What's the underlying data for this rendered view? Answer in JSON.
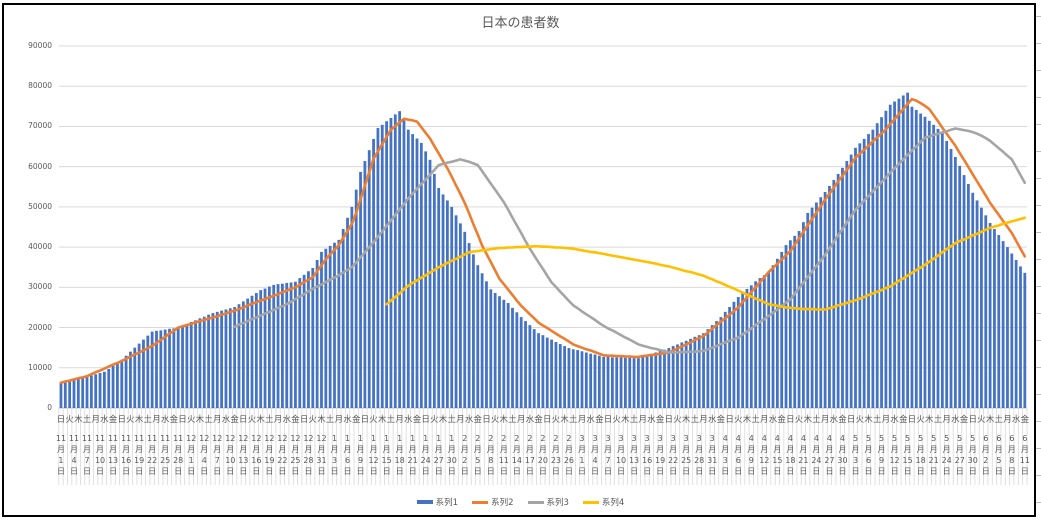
{
  "chart_data": {
    "type": "bar+line",
    "title": "日本の患者数",
    "ylim": [
      0,
      90000
    ],
    "yticks": [
      "0",
      "10000",
      "20000",
      "30000",
      "40000",
      "50000",
      "60000",
      "70000",
      "80000",
      "90000"
    ],
    "grid": true,
    "legend_position": "bottom",
    "weekday_labels": [
      "日",
      "火",
      "木",
      "土",
      "月",
      "水",
      "金",
      "日",
      "火",
      "木",
      "土",
      "月",
      "水",
      "金",
      "日",
      "火",
      "木",
      "土",
      "月",
      "水",
      "金",
      "日",
      "火",
      "木",
      "土",
      "月",
      "水",
      "金",
      "日",
      "火",
      "木",
      "土",
      "月",
      "水",
      "金",
      "日",
      "火",
      "木",
      "土",
      "月",
      "水",
      "金",
      "日",
      "火",
      "木",
      "土",
      "月",
      "水",
      "金",
      "日",
      "火",
      "木",
      "土",
      "月",
      "水",
      "金",
      "日",
      "火",
      "木",
      "土",
      "月",
      "水",
      "金",
      "日",
      "火",
      "木",
      "土",
      "月",
      "水",
      "金",
      "日",
      "火",
      "木",
      "土",
      "月",
      "水",
      "金",
      "日",
      "火",
      "木",
      "土",
      "月",
      "水",
      "金",
      "日",
      "火",
      "木",
      "土",
      "月",
      "水",
      "金",
      "日",
      "火",
      "木",
      "土",
      "月",
      "水",
      "金",
      "日",
      "火",
      "木",
      "土",
      "月",
      "水",
      "金",
      "日",
      "火",
      "木",
      "土",
      "月",
      "水",
      "金"
    ],
    "date_labels": [
      "11月1日",
      "11月4日",
      "11月7日",
      "11月10日",
      "11月13日",
      "11月16日",
      "11月19日",
      "11月22日",
      "11月25日",
      "11月28日",
      "12月1日",
      "12月4日",
      "12月7日",
      "12月10日",
      "12月13日",
      "12月16日",
      "12月19日",
      "12月22日",
      "12月25日",
      "12月28日",
      "12月31日",
      "1月3日",
      "1月6日",
      "1月9日",
      "1月12日",
      "1月15日",
      "1月18日",
      "1月21日",
      "1月24日",
      "1月27日",
      "1月30日",
      "2月2日",
      "2月5日",
      "2月8日",
      "2月11日",
      "2月14日",
      "2月17日",
      "2月20日",
      "2月23日",
      "2月26日",
      "3月1日",
      "3月4日",
      "3月7日",
      "3月10日",
      "3月13日",
      "3月16日",
      "3月19日",
      "3月22日",
      "3月25日",
      "3月28日",
      "3月31日",
      "4月3日",
      "4月6日",
      "4月9日",
      "4月12日",
      "4月15日",
      "4月18日",
      "4月21日",
      "4月24日",
      "4月27日",
      "4月30日",
      "5月3日",
      "5月6日",
      "5月9日",
      "5月12日",
      "5月15日",
      "5月18日",
      "5月21日",
      "5月24日",
      "5月27日",
      "5月30日",
      "6月2日",
      "6月5日",
      "6月8日",
      "6月11日"
    ],
    "series": [
      {
        "name": "系列1",
        "type": "bar",
        "color": "#4472C4",
        "values": [
          6500,
          6700,
          6900,
          7100,
          7300,
          7500,
          7800,
          8100,
          8400,
          8700,
          9000,
          9700,
          10500,
          11200,
          12000,
          13000,
          14000,
          15000,
          16000,
          17000,
          18000,
          19000,
          19200,
          19300,
          19500,
          19700,
          19800,
          20000,
          20500,
          20900,
          21400,
          21800,
          22300,
          22700,
          23200,
          23600,
          23900,
          24200,
          24500,
          24800,
          25100,
          25800,
          26500,
          27200,
          27900,
          28600,
          29300,
          29700,
          30200,
          30600,
          30800,
          30900,
          31100,
          31200,
          31400,
          32300,
          33100,
          34000,
          34800,
          36800,
          38800,
          39600,
          40300,
          41100,
          41800,
          44500,
          47300,
          50000,
          54300,
          58700,
          61400,
          64100,
          66900,
          69600,
          70400,
          71300,
          72100,
          73000,
          73800,
          71500,
          69200,
          68100,
          67000,
          65900,
          63800,
          61700,
          58200,
          54700,
          53100,
          51600,
          50000,
          47900,
          45900,
          43800,
          41000,
          38200,
          35500,
          33500,
          31500,
          29500,
          28600,
          27800,
          26900,
          26100,
          24900,
          23800,
          22600,
          21600,
          20600,
          19600,
          18600,
          18100,
          17500,
          17000,
          16400,
          15900,
          15400,
          14900,
          14600,
          14400,
          14100,
          13800,
          13500,
          13300,
          13000,
          12700,
          12700,
          12600,
          12600,
          12600,
          12500,
          12500,
          12400,
          12400,
          12800,
          13100,
          13500,
          13800,
          14200,
          14500,
          14900,
          15400,
          15800,
          16300,
          16700,
          17200,
          17700,
          18100,
          18600,
          19600,
          20600,
          21600,
          22600,
          23900,
          25100,
          26400,
          27600,
          28600,
          29600,
          30500,
          31500,
          32300,
          33000,
          33800,
          35500,
          37100,
          38800,
          40500,
          41700,
          42800,
          44000,
          46200,
          48500,
          49800,
          51100,
          52400,
          53700,
          55200,
          56700,
          58200,
          59700,
          61400,
          63000,
          64700,
          65800,
          66900,
          68100,
          69200,
          70800,
          72300,
          73900,
          75400,
          76200,
          76900,
          77700,
          78400,
          74900,
          74100,
          73200,
          72400,
          71400,
          70400,
          69400,
          68400,
          66400,
          64400,
          62400,
          60200,
          57900,
          55700,
          53500,
          51600,
          49800,
          47900,
          46000,
          44500,
          43000,
          41500,
          40000,
          38400,
          36800,
          35200,
          33600
        ]
      },
      {
        "name": "系列2",
        "type": "line",
        "color": "#ED7D31",
        "values": [
          6300,
          6600,
          6800,
          7100,
          7400,
          7600,
          7900,
          8400,
          8900,
          9300,
          9800,
          10300,
          10800,
          11200,
          11700,
          12200,
          12800,
          13300,
          13800,
          14300,
          14900,
          15400,
          16200,
          16900,
          17700,
          18500,
          19200,
          20000,
          20300,
          20600,
          20900,
          21300,
          21600,
          21900,
          22200,
          22500,
          22800,
          23200,
          23500,
          23900,
          24200,
          24600,
          25000,
          25500,
          25900,
          26300,
          26700,
          27100,
          27500,
          27900,
          28300,
          28800,
          29200,
          29600,
          30000,
          30600,
          31300,
          31900,
          32500,
          34000,
          35500,
          37000,
          38200,
          39300,
          40500,
          42300,
          44000,
          45800,
          48500,
          51900,
          55300,
          58600,
          62000,
          63800,
          65600,
          67400,
          69200,
          70100,
          71000,
          71900,
          71700,
          71500,
          71200,
          69800,
          68400,
          67000,
          65100,
          63300,
          61400,
          59600,
          57500,
          55300,
          53200,
          51000,
          48400,
          45700,
          43100,
          40400,
          38300,
          36300,
          34200,
          32100,
          30800,
          29400,
          28100,
          26700,
          25400,
          24400,
          23300,
          22300,
          21200,
          20500,
          19900,
          19200,
          18500,
          17800,
          17200,
          16500,
          15800,
          15400,
          15000,
          14600,
          14300,
          13900,
          13500,
          13100,
          13000,
          13000,
          12900,
          12900,
          12800,
          12800,
          12700,
          12700,
          12900,
          13000,
          13200,
          13300,
          13500,
          13600,
          13800,
          14300,
          14800,
          15300,
          15800,
          16300,
          16900,
          17400,
          17900,
          18800,
          19700,
          20600,
          21500,
          22300,
          23200,
          24100,
          25000,
          26300,
          27500,
          28800,
          30000,
          31300,
          32500,
          33800,
          34800,
          35900,
          36900,
          38000,
          39000,
          40600,
          42200,
          43800,
          45400,
          47000,
          48600,
          50200,
          51800,
          53300,
          54800,
          56300,
          57700,
          59200,
          60700,
          62200,
          63200,
          64200,
          65200,
          66300,
          67300,
          68300,
          69300,
          70600,
          71800,
          73100,
          74300,
          75600,
          76800,
          76400,
          75800,
          75100,
          74300,
          72800,
          71300,
          69700,
          68200,
          66700,
          65200,
          63400,
          61700,
          59900,
          58100,
          56300,
          54600,
          52800,
          51000,
          49500,
          48000,
          46500,
          45000,
          43500,
          41600,
          39600,
          37700
        ]
      },
      {
        "name": "系列3",
        "type": "line",
        "color": "#A5A5A5",
        "values": [
          null,
          null,
          null,
          null,
          null,
          null,
          null,
          null,
          null,
          null,
          null,
          null,
          null,
          null,
          null,
          null,
          null,
          null,
          null,
          null,
          null,
          null,
          null,
          null,
          null,
          null,
          null,
          null,
          null,
          null,
          null,
          null,
          null,
          null,
          null,
          null,
          null,
          null,
          null,
          null,
          20200,
          20700,
          21100,
          21600,
          22100,
          22500,
          23000,
          23500,
          23900,
          24400,
          24900,
          25300,
          25800,
          26400,
          27100,
          27700,
          28300,
          29000,
          29600,
          30200,
          30700,
          31300,
          31900,
          32400,
          33000,
          33700,
          34300,
          35000,
          36200,
          37500,
          38700,
          40000,
          41200,
          42600,
          43900,
          45300,
          46600,
          48000,
          49400,
          50700,
          52100,
          53300,
          54500,
          55700,
          56800,
          58000,
          59200,
          60400,
          60700,
          61000,
          61200,
          61500,
          61800,
          61500,
          61200,
          60800,
          60400,
          58900,
          57300,
          55800,
          54300,
          52700,
          51200,
          49300,
          47300,
          45400,
          43500,
          41500,
          39600,
          37900,
          36200,
          34600,
          32900,
          31200,
          30100,
          28900,
          27800,
          26600,
          25500,
          24800,
          24000,
          23300,
          22600,
          21900,
          21100,
          20400,
          19800,
          19300,
          18700,
          18100,
          17500,
          17000,
          16400,
          15800,
          15500,
          15200,
          14900,
          14700,
          14400,
          14100,
          13800,
          13800,
          13800,
          13900,
          13900,
          14000,
          14000,
          14100,
          14200,
          14600,
          15000,
          15400,
          15900,
          16300,
          16700,
          17100,
          17500,
          18300,
          19000,
          19800,
          20600,
          21400,
          22100,
          22900,
          23700,
          24500,
          25400,
          26200,
          27000,
          28400,
          29800,
          31200,
          32600,
          33900,
          35300,
          36700,
          38100,
          39700,
          41300,
          42900,
          44500,
          46100,
          47700,
          49300,
          50400,
          51600,
          52700,
          53900,
          55000,
          56200,
          57300,
          58500,
          59600,
          60700,
          61800,
          62900,
          64000,
          65000,
          66100,
          67200,
          67500,
          67900,
          68200,
          68500,
          68800,
          69200,
          69500,
          69300,
          69100,
          68900,
          68600,
          68200,
          67700,
          67100,
          66400,
          65500,
          64600,
          63700,
          62700,
          61800,
          59900,
          57900,
          56000
        ]
      },
      {
        "name": "系列4",
        "type": "line",
        "color": "#FFC000",
        "values": [
          null,
          null,
          null,
          null,
          null,
          null,
          null,
          null,
          null,
          null,
          null,
          null,
          null,
          null,
          null,
          null,
          null,
          null,
          null,
          null,
          null,
          null,
          null,
          null,
          null,
          null,
          null,
          null,
          null,
          null,
          null,
          null,
          null,
          null,
          null,
          null,
          null,
          null,
          null,
          null,
          null,
          null,
          null,
          null,
          null,
          null,
          null,
          null,
          null,
          null,
          null,
          null,
          null,
          null,
          null,
          null,
          null,
          null,
          null,
          null,
          null,
          null,
          null,
          null,
          null,
          null,
          null,
          null,
          null,
          null,
          null,
          null,
          null,
          null,
          null,
          25800,
          26700,
          27600,
          28500,
          29500,
          30400,
          31100,
          31700,
          32400,
          33000,
          33700,
          34300,
          35000,
          35500,
          36100,
          36600,
          37100,
          37600,
          38200,
          38700,
          38900,
          39000,
          39200,
          39300,
          39500,
          39600,
          39800,
          39800,
          39900,
          39900,
          40000,
          40000,
          40100,
          40100,
          40200,
          40200,
          40100,
          40100,
          40000,
          39900,
          39900,
          39800,
          39700,
          39600,
          39400,
          39200,
          39000,
          38800,
          38700,
          38500,
          38300,
          38100,
          37900,
          37700,
          37500,
          37300,
          37100,
          36900,
          36700,
          36500,
          36300,
          36100,
          35900,
          35600,
          35400,
          35200,
          34900,
          34600,
          34300,
          34000,
          33800,
          33500,
          33200,
          32900,
          32400,
          32000,
          31500,
          31100,
          30600,
          30100,
          29700,
          29200,
          28700,
          28200,
          27700,
          27200,
          26800,
          26300,
          25800,
          25600,
          25400,
          25200,
          25000,
          24900,
          24800,
          24700,
          24600,
          24600,
          24600,
          24500,
          24500,
          24500,
          24800,
          25100,
          25500,
          25800,
          26100,
          26500,
          26800,
          27200,
          27600,
          28100,
          28500,
          28900,
          29300,
          29800,
          30200,
          30900,
          31600,
          32200,
          32900,
          33600,
          34300,
          34900,
          35600,
          36400,
          37100,
          37900,
          38700,
          39500,
          40200,
          41000,
          41500,
          41900,
          42400,
          42900,
          43300,
          43800,
          44300,
          44800,
          45100,
          45400,
          45800,
          46100,
          46400,
          46700,
          47000,
          47300
        ]
      }
    ]
  }
}
